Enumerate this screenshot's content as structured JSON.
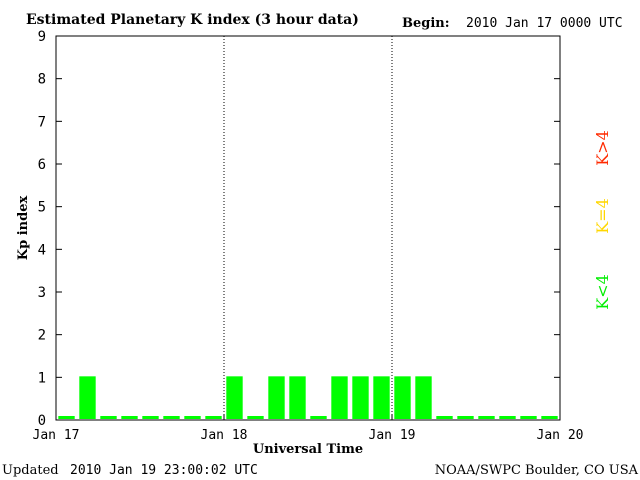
{
  "header": {
    "title": "Estimated Planetary K index (3 hour data)",
    "begin_label": "Begin:",
    "begin_value": "2010 Jan 17 0000 UTC"
  },
  "footer": {
    "updated_label": "Updated",
    "updated_value": "2010 Jan 19 23:00:02 UTC",
    "source": "NOAA/SWPC Boulder, CO USA"
  },
  "legend": [
    {
      "label": "K>4",
      "color": "#ff2a00"
    },
    {
      "label": "K=4",
      "color": "#ffd700"
    },
    {
      "label": "K<4",
      "color": "#00ee00"
    }
  ],
  "chart_data": {
    "type": "bar",
    "xlabel": "Universal Time",
    "ylabel": "Kp index",
    "ylim": [
      0,
      9
    ],
    "yticks": [
      "0",
      "1",
      "2",
      "3",
      "4",
      "5",
      "6",
      "7",
      "8",
      "9"
    ],
    "xticks": [
      "Jan 17",
      "Jan 18",
      "Jan 19",
      "Jan 20"
    ],
    "day_dividers": [
      1,
      2
    ],
    "bar_color": "#00ff00",
    "values": [
      0,
      1,
      0,
      0,
      0,
      0,
      0,
      0,
      1,
      0,
      1,
      1,
      0,
      1,
      1,
      1,
      1,
      1,
      0,
      0,
      0,
      0,
      0,
      0
    ]
  }
}
